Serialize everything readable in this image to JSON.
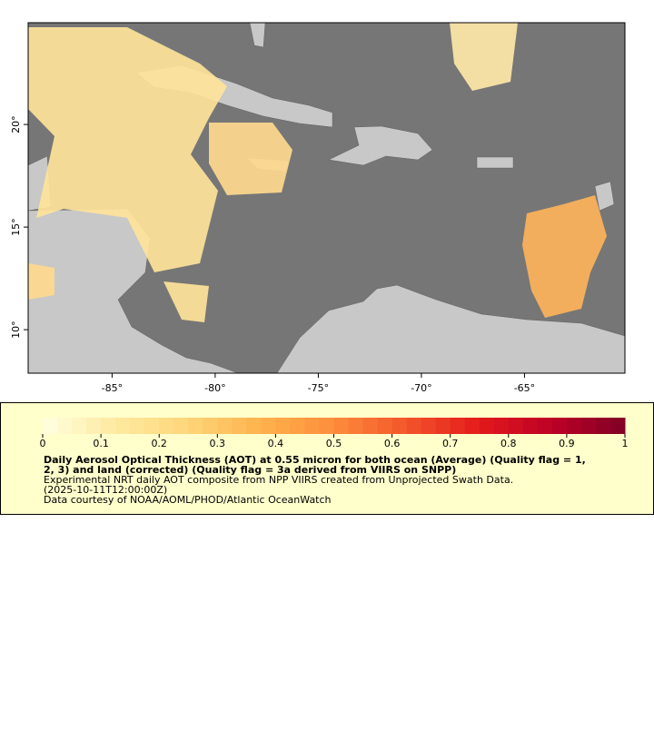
{
  "map": {
    "xlim": [
      -89.07,
      -60.13
    ],
    "ylim": [
      7.88,
      24.96
    ],
    "xticks": [
      {
        "value": -85,
        "label": "-85°"
      },
      {
        "value": -80,
        "label": "-80°"
      },
      {
        "value": -75,
        "label": "-75°"
      },
      {
        "value": -70,
        "label": "-70°"
      },
      {
        "value": -65,
        "label": "-65°"
      }
    ],
    "yticks": [
      {
        "value": 10,
        "label": "10°"
      },
      {
        "value": 15,
        "label": "15°"
      },
      {
        "value": 20,
        "label": "20°"
      }
    ]
  },
  "colorbar": {
    "lim": [
      0,
      1
    ],
    "ticks": [
      0,
      0.1,
      0.2,
      0.3,
      0.4,
      0.5,
      0.6,
      0.7,
      0.8,
      0.9,
      1
    ],
    "colors": [
      "#ffffe0",
      "#feeaa0",
      "#fed57a",
      "#feb24c",
      "#fd8d3c",
      "#f3552a",
      "#e31a1c",
      "#bd0026",
      "#800026"
    ]
  },
  "legend": {
    "title_lines": [
      "Daily Aerosol Optical Thickness (AOT) at 0.55 micron for both ocean (Average) (Quality flag = 1,",
      "2, 3) and land (corrected) (Quality flag = 3a derived from VIIRS on SNPP)"
    ],
    "lines": [
      "Experimental NRT daily AOT composite from NPP VIIRS created from Unprojected Swath Data.",
      "(2025-10-11T12:00:00Z)",
      "Data courtesy of NOAA/AOML/PHOD/Atlantic OceanWatch"
    ]
  }
}
